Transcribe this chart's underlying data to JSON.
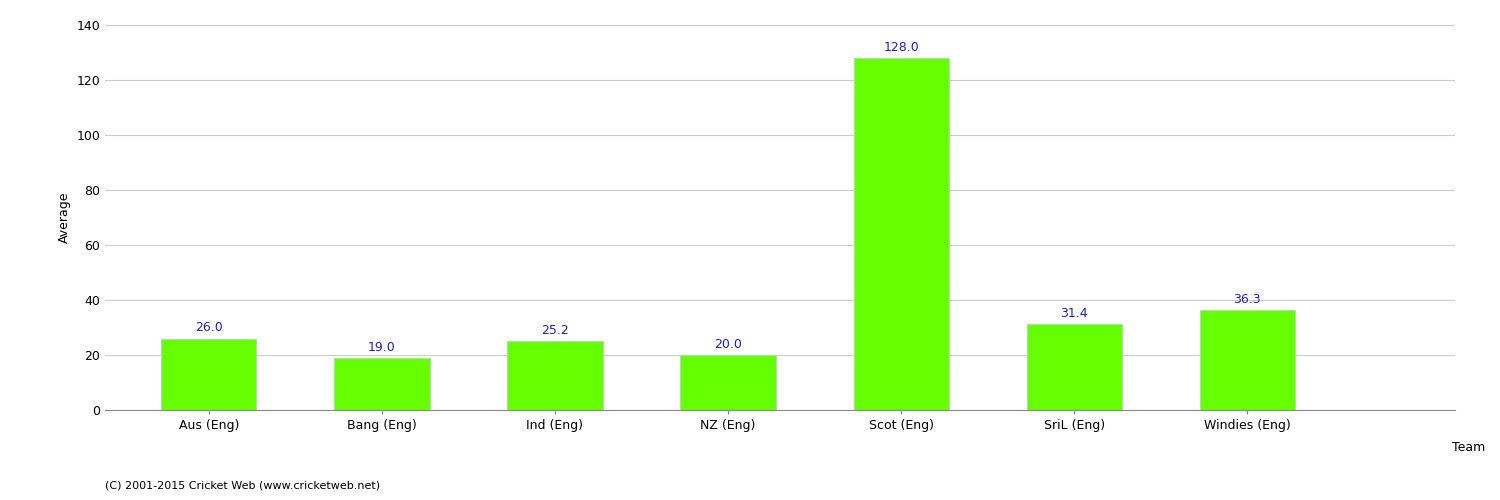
{
  "categories": [
    "Aus (Eng)",
    "Bang (Eng)",
    "Ind (Eng)",
    "NZ (Eng)",
    "Scot (Eng)",
    "SriL (Eng)",
    "Windies (Eng)"
  ],
  "values": [
    26.0,
    19.0,
    25.2,
    20.0,
    128.0,
    31.4,
    36.3
  ],
  "bar_color": "#66ff00",
  "bar_edge_color": "#aaddaa",
  "label_color": "#2222aa",
  "ylabel": "Average",
  "xlabel": "Team",
  "ylim": [
    0,
    140
  ],
  "yticks": [
    0,
    20,
    40,
    60,
    80,
    100,
    120,
    140
  ],
  "grid_color": "#cccccc",
  "background_color": "#ffffff",
  "fig_background_color": "#ffffff",
  "label_fontsize": 9,
  "axis_label_fontsize": 9,
  "tick_fontsize": 9,
  "footer_text": "(C) 2001-2015 Cricket Web (www.cricketweb.net)",
  "footer_fontsize": 8,
  "bar_width": 0.55
}
